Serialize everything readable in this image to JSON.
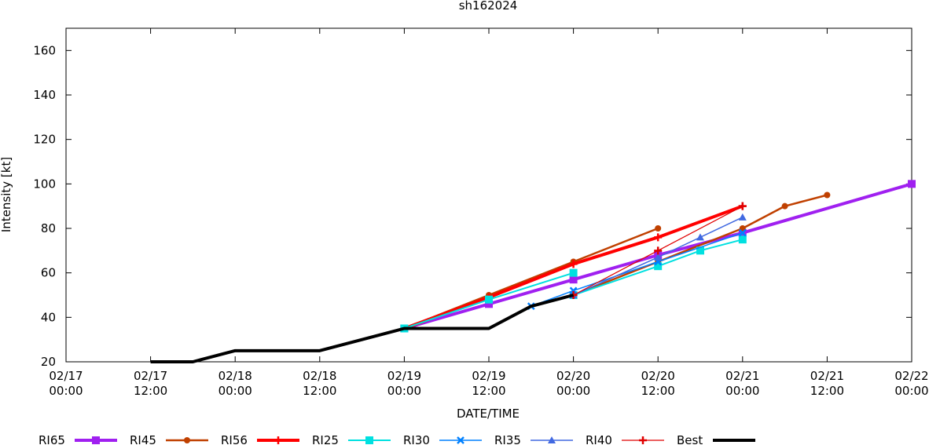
{
  "chart_data": {
    "type": "line",
    "title": "sh162024",
    "xlabel": "DATE/TIME",
    "ylabel": "Intensity [kt]",
    "xlim": [
      0,
      120
    ],
    "ylim": [
      20,
      170
    ],
    "x_unit_note_hours_since": "02/17 00:00",
    "x_ticks": [
      {
        "x": 0,
        "line1": "02/17",
        "line2": "00:00"
      },
      {
        "x": 12,
        "line1": "02/17",
        "line2": "12:00"
      },
      {
        "x": 24,
        "line1": "02/18",
        "line2": "00:00"
      },
      {
        "x": 36,
        "line1": "02/18",
        "line2": "12:00"
      },
      {
        "x": 48,
        "line1": "02/19",
        "line2": "00:00"
      },
      {
        "x": 60,
        "line1": "02/19",
        "line2": "12:00"
      },
      {
        "x": 72,
        "line1": "02/20",
        "line2": "00:00"
      },
      {
        "x": 84,
        "line1": "02/20",
        "line2": "12:00"
      },
      {
        "x": 96,
        "line1": "02/21",
        "line2": "00:00"
      },
      {
        "x": 108,
        "line1": "02/21",
        "line2": "12:00"
      },
      {
        "x": 120,
        "line1": "02/22",
        "line2": "00:00"
      }
    ],
    "y_ticks": [
      20,
      40,
      60,
      80,
      100,
      120,
      140,
      160
    ],
    "legend_position": "bottom",
    "series": [
      {
        "name": "RI65",
        "color": "#a020f0",
        "marker": "square",
        "width": 4,
        "x": [
          48,
          60,
          72,
          84,
          96,
          120
        ],
        "y": [
          35,
          46,
          57,
          68,
          78,
          100
        ]
      },
      {
        "name": "RI45",
        "color": "#c04000",
        "marker": "circle",
        "width": 2.5,
        "x": [
          48,
          60,
          72,
          84
        ],
        "y": [
          35,
          50,
          65,
          80
        ]
      },
      {
        "name": "RI45",
        "color": "#c04000",
        "marker": "circle",
        "width": 2.5,
        "x": [
          72,
          84,
          96,
          102,
          108
        ],
        "y": [
          50,
          65,
          80,
          90,
          95
        ]
      },
      {
        "name": "RI56",
        "color": "#ff0000",
        "marker": "plus",
        "width": 4,
        "x": [
          48,
          60,
          72,
          84,
          96
        ],
        "y": [
          35,
          49,
          64,
          76,
          90
        ]
      },
      {
        "name": "RI25",
        "color": "#00e0e0",
        "marker": "square",
        "width": 2,
        "x": [
          48,
          60,
          72
        ],
        "y": [
          35,
          48,
          60
        ]
      },
      {
        "name": "RI25",
        "color": "#00e0e0",
        "marker": "square",
        "width": 2,
        "x": [
          72,
          84,
          90,
          96
        ],
        "y": [
          50,
          63,
          70,
          75
        ]
      },
      {
        "name": "RI30",
        "color": "#0080ff",
        "marker": "x",
        "width": 1.5,
        "x": [
          66,
          72,
          84,
          96
        ],
        "y": [
          45,
          52,
          65,
          78
        ]
      },
      {
        "name": "RI35",
        "color": "#4169e1",
        "marker": "triangle",
        "width": 1.5,
        "x": [
          72,
          84,
          90,
          96
        ],
        "y": [
          50,
          67,
          76,
          85
        ]
      },
      {
        "name": "RI40",
        "color": "#e00000",
        "marker": "plus",
        "width": 1.2,
        "x": [
          72,
          84,
          96
        ],
        "y": [
          50,
          70,
          90
        ]
      },
      {
        "name": "Best",
        "color": "#000000",
        "marker": "none",
        "width": 4,
        "x": [
          12,
          18,
          24,
          36,
          42,
          48,
          54,
          60,
          66,
          72
        ],
        "y": [
          20,
          20,
          25,
          25,
          30,
          35,
          35,
          35,
          45,
          50
        ]
      }
    ],
    "legend": [
      {
        "name": "RI65",
        "color": "#a020f0",
        "marker": "square",
        "width": 4
      },
      {
        "name": "RI45",
        "color": "#c04000",
        "marker": "circle",
        "width": 2.5
      },
      {
        "name": "RI56",
        "color": "#ff0000",
        "marker": "plus",
        "width": 4
      },
      {
        "name": "RI25",
        "color": "#00e0e0",
        "marker": "square",
        "width": 2
      },
      {
        "name": "RI30",
        "color": "#0080ff",
        "marker": "x",
        "width": 1.5
      },
      {
        "name": "RI35",
        "color": "#4169e1",
        "marker": "triangle",
        "width": 1.5
      },
      {
        "name": "RI40",
        "color": "#e00000",
        "marker": "plus",
        "width": 1.2
      },
      {
        "name": "Best",
        "color": "#000000",
        "marker": "none",
        "width": 4
      }
    ]
  }
}
